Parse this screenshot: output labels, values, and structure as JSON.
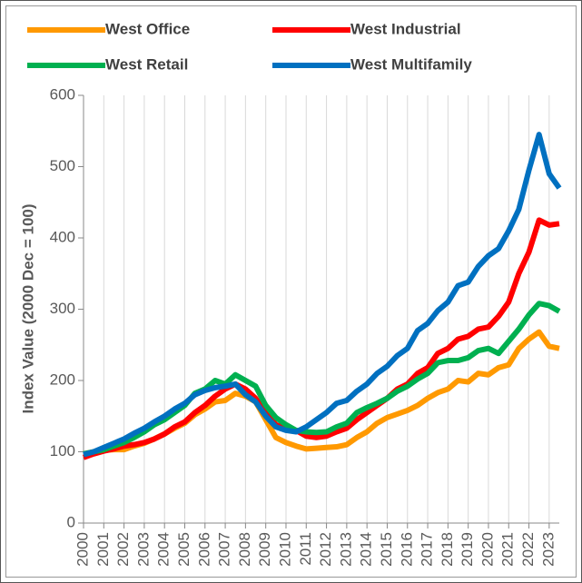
{
  "chart_data": {
    "type": "line",
    "y_label": "Index Value (2000 Dec = 100)",
    "x": [
      2000,
      2000.5,
      2001,
      2001.5,
      2002,
      2002.5,
      2003,
      2003.5,
      2004,
      2004.5,
      2005,
      2005.5,
      2006,
      2006.5,
      2007,
      2007.5,
      2008,
      2008.5,
      2009,
      2009.5,
      2010,
      2010.5,
      2011,
      2011.5,
      2012,
      2012.5,
      2013,
      2013.5,
      2014,
      2014.5,
      2015,
      2015.5,
      2016,
      2016.5,
      2017,
      2017.5,
      2018,
      2018.5,
      2019,
      2019.5,
      2020,
      2020.5,
      2021,
      2021.5,
      2022,
      2022.5,
      2023,
      2023.5
    ],
    "series": [
      {
        "name": "West Office",
        "color": "#ff9900",
        "values": [
          97,
          100,
          102,
          103,
          103,
          108,
          112,
          118,
          125,
          133,
          140,
          152,
          160,
          170,
          172,
          182,
          178,
          170,
          145,
          120,
          113,
          108,
          104,
          105,
          106,
          107,
          110,
          120,
          128,
          140,
          148,
          153,
          158,
          165,
          175,
          183,
          188,
          200,
          198,
          210,
          208,
          218,
          222,
          245,
          258,
          268,
          248,
          245
        ]
      },
      {
        "name": "West Industrial",
        "color": "#ff0000",
        "values": [
          92,
          97,
          101,
          104,
          108,
          110,
          113,
          118,
          125,
          135,
          142,
          155,
          165,
          178,
          188,
          195,
          188,
          175,
          155,
          138,
          132,
          130,
          122,
          120,
          122,
          128,
          133,
          145,
          155,
          165,
          175,
          188,
          195,
          210,
          218,
          238,
          245,
          258,
          262,
          272,
          275,
          290,
          310,
          350,
          380,
          425,
          418,
          420
        ]
      },
      {
        "name": "West Retail",
        "color": "#00b050",
        "values": [
          97,
          100,
          103,
          108,
          113,
          120,
          128,
          138,
          145,
          155,
          165,
          182,
          188,
          200,
          195,
          208,
          200,
          192,
          165,
          148,
          138,
          130,
          128,
          127,
          128,
          135,
          140,
          155,
          162,
          168,
          175,
          185,
          192,
          202,
          210,
          225,
          228,
          228,
          232,
          242,
          245,
          238,
          255,
          272,
          292,
          308,
          305,
          297
        ]
      },
      {
        "name": "West Multifamily",
        "color": "#0070c0",
        "values": [
          96,
          100,
          106,
          112,
          118,
          126,
          133,
          142,
          150,
          160,
          168,
          180,
          186,
          190,
          192,
          195,
          180,
          170,
          150,
          135,
          130,
          128,
          135,
          145,
          155,
          168,
          172,
          185,
          195,
          210,
          220,
          235,
          245,
          270,
          280,
          298,
          310,
          333,
          338,
          360,
          375,
          385,
          410,
          440,
          495,
          545,
          490,
          470
        ]
      }
    ],
    "xlim": [
      2000,
      2023.5
    ],
    "xticks": [
      2000,
      2001,
      2002,
      2003,
      2004,
      2005,
      2006,
      2007,
      2008,
      2009,
      2010,
      2011,
      2012,
      2013,
      2014,
      2015,
      2016,
      2017,
      2018,
      2019,
      2020,
      2021,
      2022,
      2023
    ],
    "ylim": [
      0,
      600
    ],
    "yticks": [
      0,
      100,
      200,
      300,
      400,
      500,
      600
    ],
    "grid": "x",
    "legend": "top"
  }
}
